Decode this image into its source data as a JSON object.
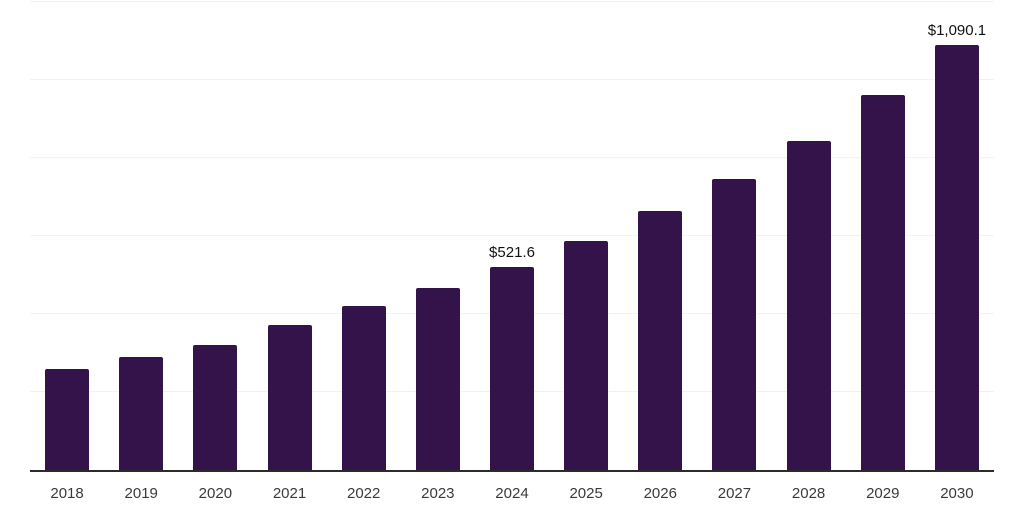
{
  "chart_data": {
    "type": "bar",
    "title": "",
    "xlabel": "",
    "ylabel": "",
    "categories": [
      "2018",
      "2019",
      "2020",
      "2021",
      "2022",
      "2023",
      "2024",
      "2025",
      "2026",
      "2027",
      "2028",
      "2029",
      "2030"
    ],
    "values": [
      260,
      291,
      320,
      373,
      420,
      466,
      521.6,
      588,
      663,
      745,
      844,
      961,
      1090.1
    ],
    "data_labels": {
      "2024": "$521.6",
      "2030": "$1,090.1"
    },
    "ylim": [
      0,
      1200
    ],
    "grid_step": 200,
    "grid": true,
    "legend": false,
    "y_axis_tick_labels_visible": false
  },
  "colors": {
    "background": "#ffffff",
    "bar": "#331349",
    "axis_line": "#2b2b2b",
    "gridline": "#f2f2f2",
    "tick_label": "#3a3a3a",
    "value_label": "#111111"
  }
}
